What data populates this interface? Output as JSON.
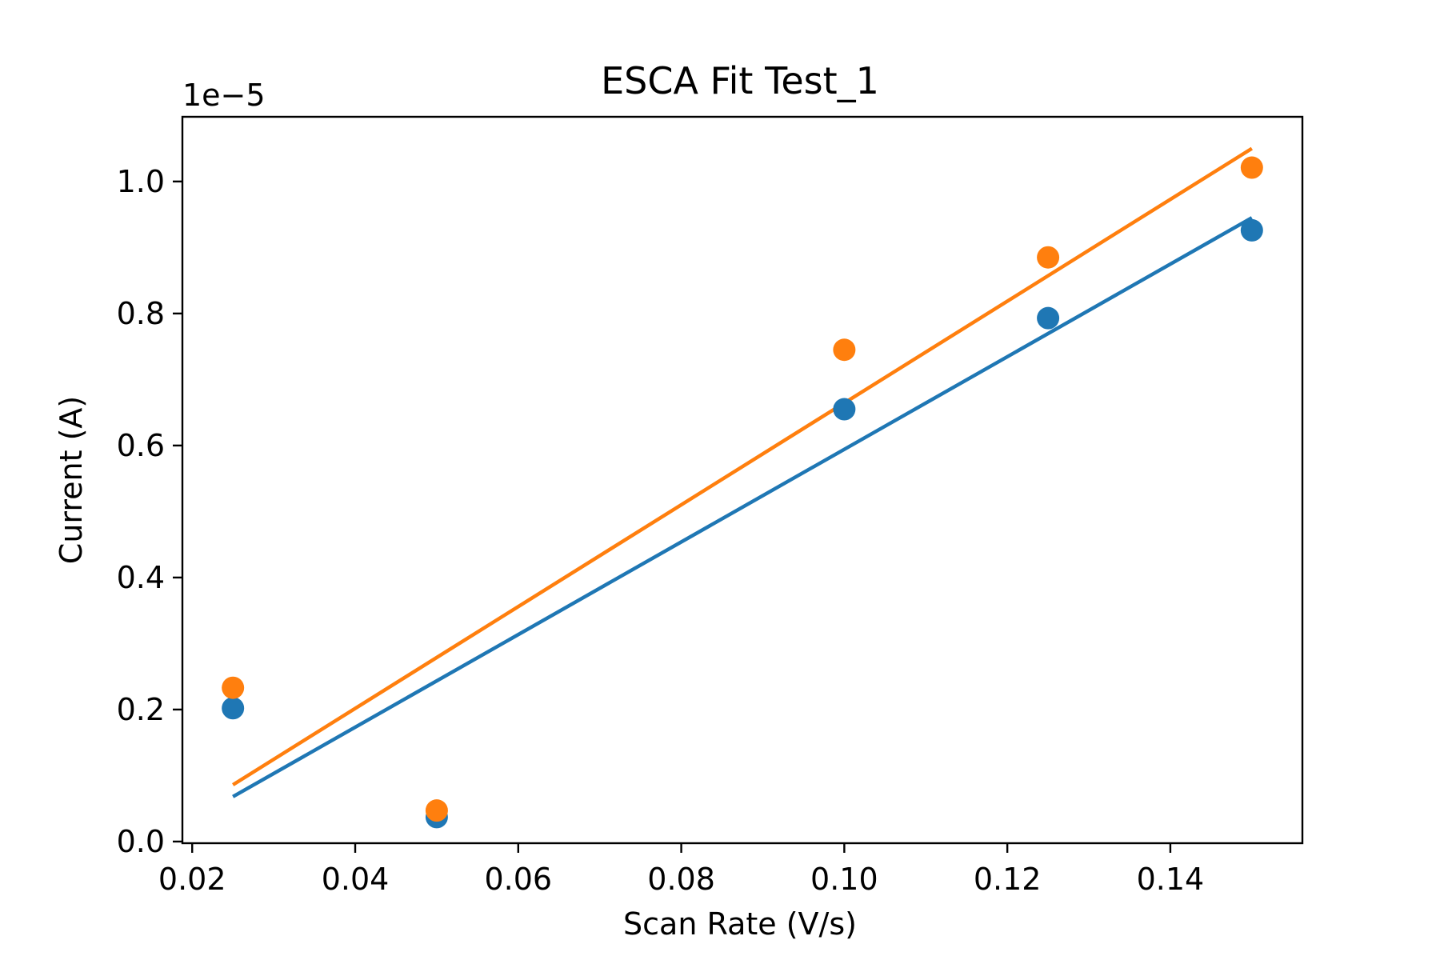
{
  "chart_data": {
    "type": "scatter",
    "title": "ESCA Fit Test_1",
    "xlabel": "Scan Rate (V/s)",
    "ylabel": "Current (A)",
    "y_offset_label": "1e−5",
    "y_scale": 1e-05,
    "xlim": [
      0.0188,
      0.1562
    ],
    "ylim": [
      -0.0025,
      1.098
    ],
    "x_ticks": [
      0.02,
      0.04,
      0.06,
      0.08,
      0.1,
      0.12,
      0.14
    ],
    "x_tick_labels": [
      "0.02",
      "0.04",
      "0.06",
      "0.08",
      "0.10",
      "0.12",
      "0.14"
    ],
    "y_ticks": [
      0.0,
      0.2,
      0.4,
      0.6,
      0.8,
      1.0
    ],
    "y_tick_labels": [
      "0.0",
      "0.2",
      "0.4",
      "0.6",
      "0.8",
      "1.0"
    ],
    "grid": false,
    "legend": "none",
    "series": [
      {
        "color": "#1f77b4",
        "points": {
          "x": [
            0.025,
            0.05,
            0.1,
            0.125,
            0.15
          ],
          "y": [
            0.202,
            0.037,
            0.655,
            0.793,
            0.926
          ]
        },
        "fit_line": {
          "x": [
            0.025,
            0.15
          ],
          "y": [
            0.068,
            0.945
          ]
        }
      },
      {
        "color": "#ff7f0e",
        "points": {
          "x": [
            0.025,
            0.05,
            0.1,
            0.125,
            0.15
          ],
          "y": [
            0.233,
            0.047,
            0.745,
            0.885,
            1.021
          ]
        },
        "fit_line": {
          "x": [
            0.025,
            0.15
          ],
          "y": [
            0.086,
            1.05
          ]
        }
      }
    ]
  }
}
